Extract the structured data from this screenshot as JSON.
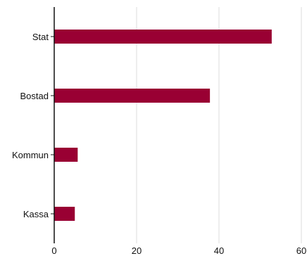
{
  "chart_data": {
    "type": "bar",
    "orientation": "horizontal",
    "categories": [
      "Stat",
      "Bostad",
      "Kommun",
      "Kassa"
    ],
    "values": [
      52.8,
      37.8,
      5.7,
      5.0
    ],
    "xlim": [
      0,
      60
    ],
    "xticks": [
      "0",
      "20",
      "40",
      "60"
    ],
    "grid": true,
    "bar_color": "#990033",
    "grid_color": "#dddddd"
  }
}
